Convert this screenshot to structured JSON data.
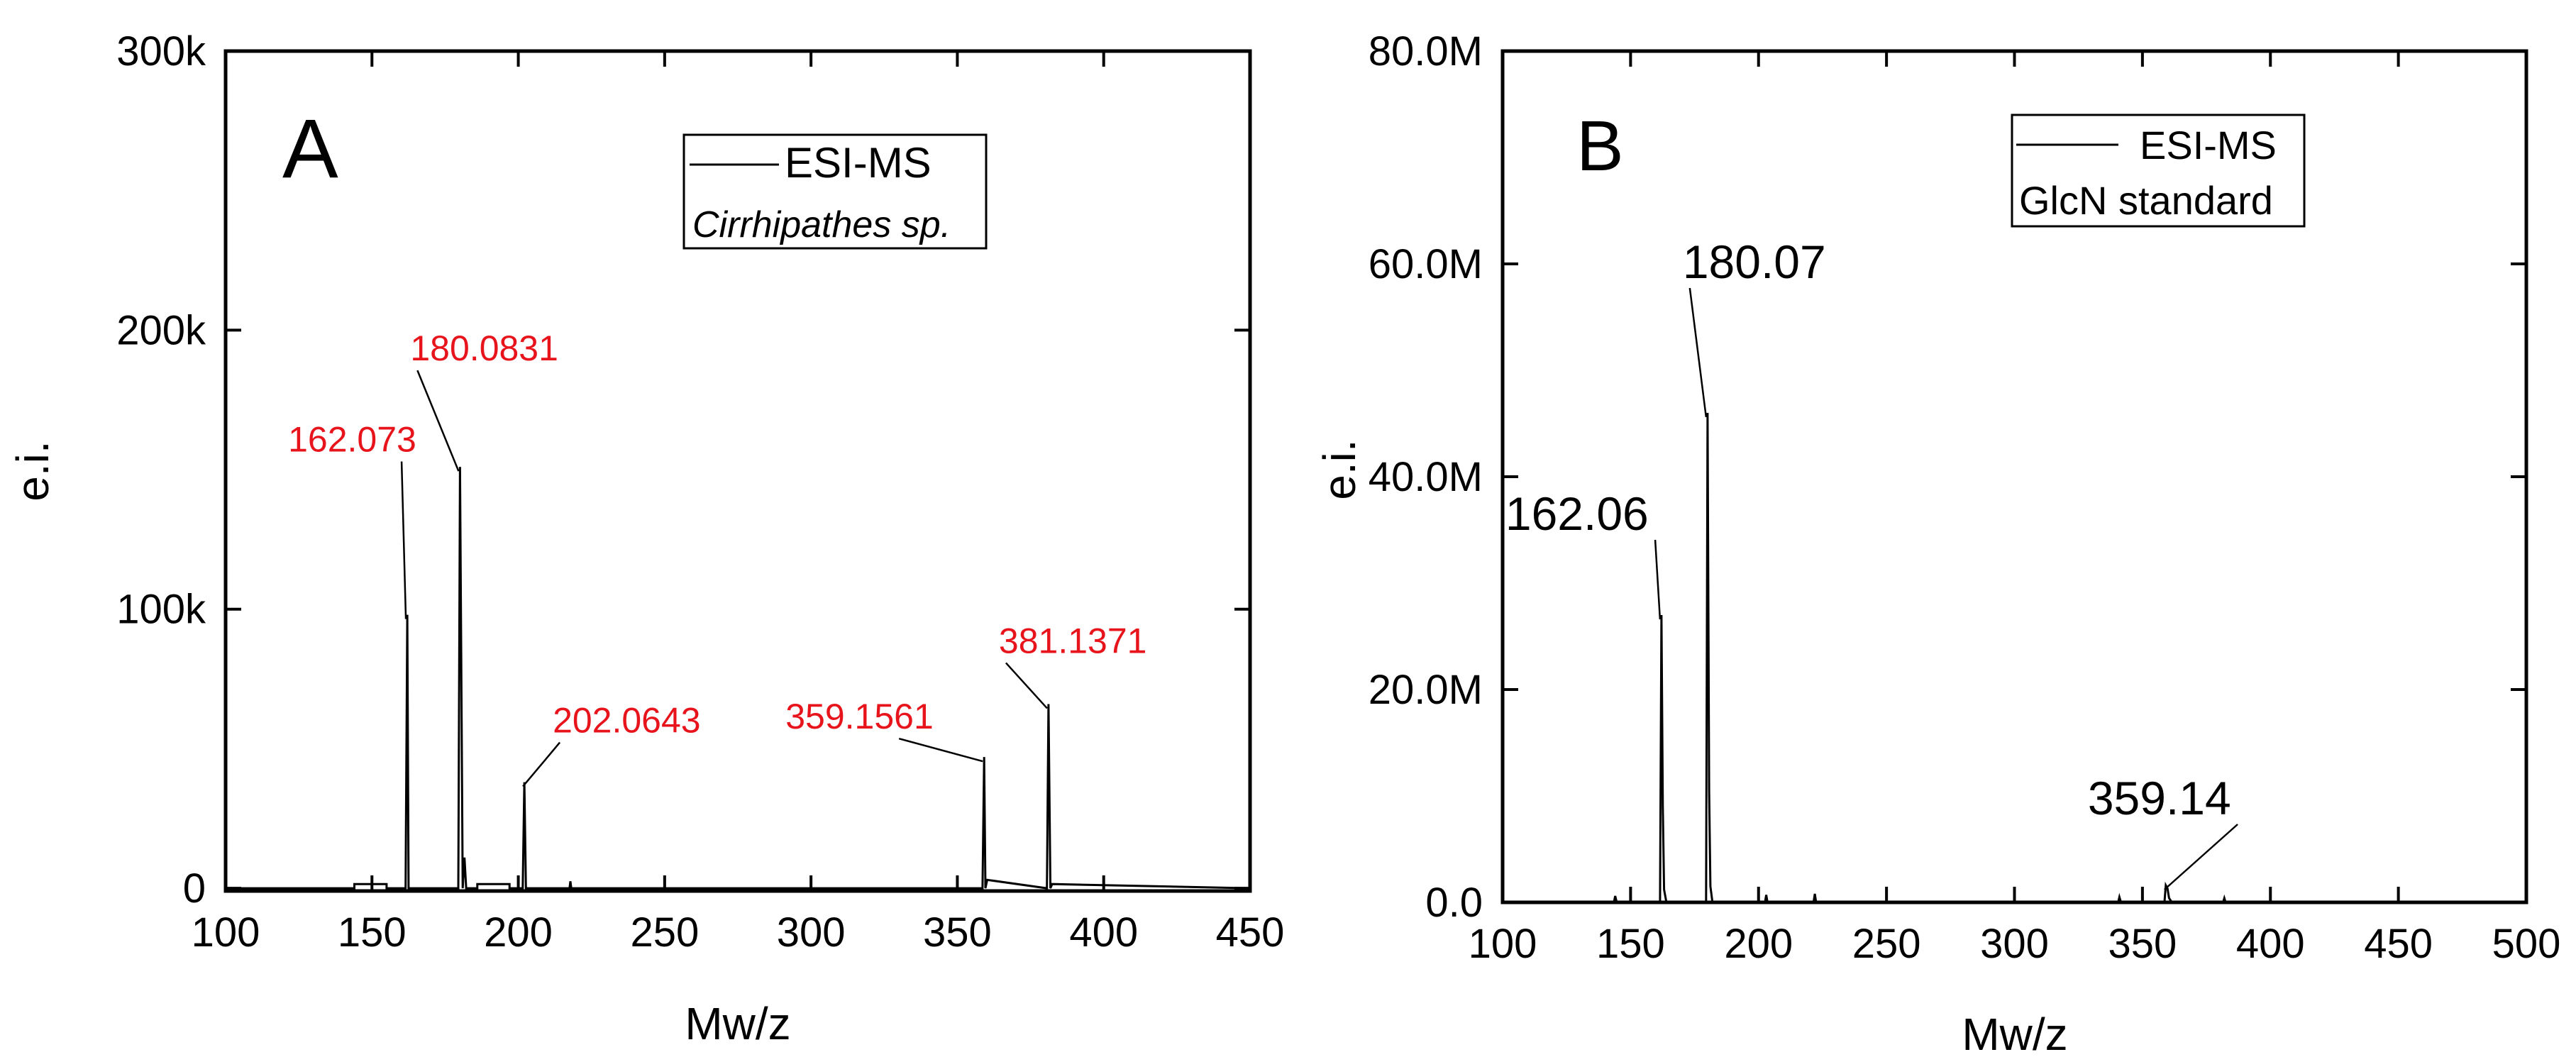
{
  "chart_data": [
    {
      "type": "line",
      "panel_label": "A",
      "xlabel": "Mw/z",
      "ylabel": "e.i.",
      "xlim": [
        100,
        450
      ],
      "ylim": [
        0,
        300000
      ],
      "x_ticks": [
        100,
        150,
        200,
        250,
        300,
        350,
        400,
        450
      ],
      "y_ticks": [
        0,
        100000,
        200000,
        300000
      ],
      "y_tick_labels": [
        "0",
        "100k",
        "200k",
        "300k"
      ],
      "legend": {
        "position": "top-right",
        "entry": "ESI-MS",
        "sample": "Cirrhipathes sp."
      },
      "annotation_color": "#e8141c",
      "series": [
        {
          "x": [
            100,
            144,
            144,
            155,
            155,
            161.5,
            162.07,
            162.5,
            166,
            179.5,
            180.08,
            181,
            181.6,
            182.2,
            183.5,
            186,
            186,
            197,
            197,
            201.5,
            202.06,
            202.6,
            217.5,
            217.8,
            218.1,
            358.6,
            359.16,
            359.6,
            360.2,
            380.6,
            381.14,
            381.8,
            382.4,
            450
          ],
          "y": [
            0,
            0,
            1500,
            1500,
            0,
            0,
            98000,
            0,
            0,
            0,
            151000,
            0,
            11000,
            0,
            0,
            0,
            1500,
            1500,
            0,
            0,
            38000,
            0,
            0,
            2500,
            0,
            0,
            47000,
            0,
            3000,
            0,
            66000,
            0,
            1500,
            0
          ]
        }
      ],
      "annotations": [
        {
          "text": "162.073",
          "x": 162.07,
          "y": 98000
        },
        {
          "text": "180.0831",
          "x": 180.08,
          "y": 151000
        },
        {
          "text": "202.0643",
          "x": 202.06,
          "y": 38000
        },
        {
          "text": "359.1561",
          "x": 359.16,
          "y": 47000
        },
        {
          "text": "381.1371",
          "x": 381.14,
          "y": 66000
        }
      ]
    },
    {
      "type": "line",
      "panel_label": "B",
      "xlabel": "Mw/z",
      "ylabel": "e.i.",
      "xlim": [
        100,
        500
      ],
      "ylim": [
        0,
        80000000
      ],
      "x_ticks": [
        100,
        150,
        200,
        250,
        300,
        350,
        400,
        450,
        500
      ],
      "y_ticks": [
        0,
        20000000,
        40000000,
        60000000,
        80000000
      ],
      "y_tick_labels": [
        "0.0",
        "20.0M",
        "40.0M",
        "60.0M",
        "80.0M"
      ],
      "legend": {
        "position": "top-right",
        "entry": "ESI-MS",
        "sample": "GlcN standard"
      },
      "annotation_color": "#000000",
      "series": [
        {
          "x": [
            125,
            143.5,
            144,
            144.6,
            161.5,
            162.06,
            162.6,
            163.1,
            164,
            179.5,
            180.07,
            180.7,
            181.2,
            182,
            183,
            202.5,
            203,
            203.5,
            221.5,
            222,
            222.5,
            340.5,
            341,
            341.6,
            358.6,
            359.14,
            359.8,
            360.4,
            361.5,
            381.5,
            382,
            382.5,
            500
          ],
          "y": [
            0,
            0,
            600000,
            0,
            0,
            27000000,
            9000000,
            1200000,
            0,
            0,
            46000000,
            10500000,
            1500000,
            0,
            0,
            0,
            700000,
            0,
            0,
            800000,
            0,
            0,
            500000,
            0,
            0,
            1600000,
            1300000,
            400000,
            0,
            0,
            400000,
            0,
            0
          ]
        }
      ],
      "annotations": [
        {
          "text": "162.06",
          "x": 162.06,
          "y": 27000000
        },
        {
          "text": "180.07",
          "x": 180.07,
          "y": 46000000
        },
        {
          "text": "359.14",
          "x": 359.14,
          "y": 1600000
        }
      ]
    }
  ]
}
